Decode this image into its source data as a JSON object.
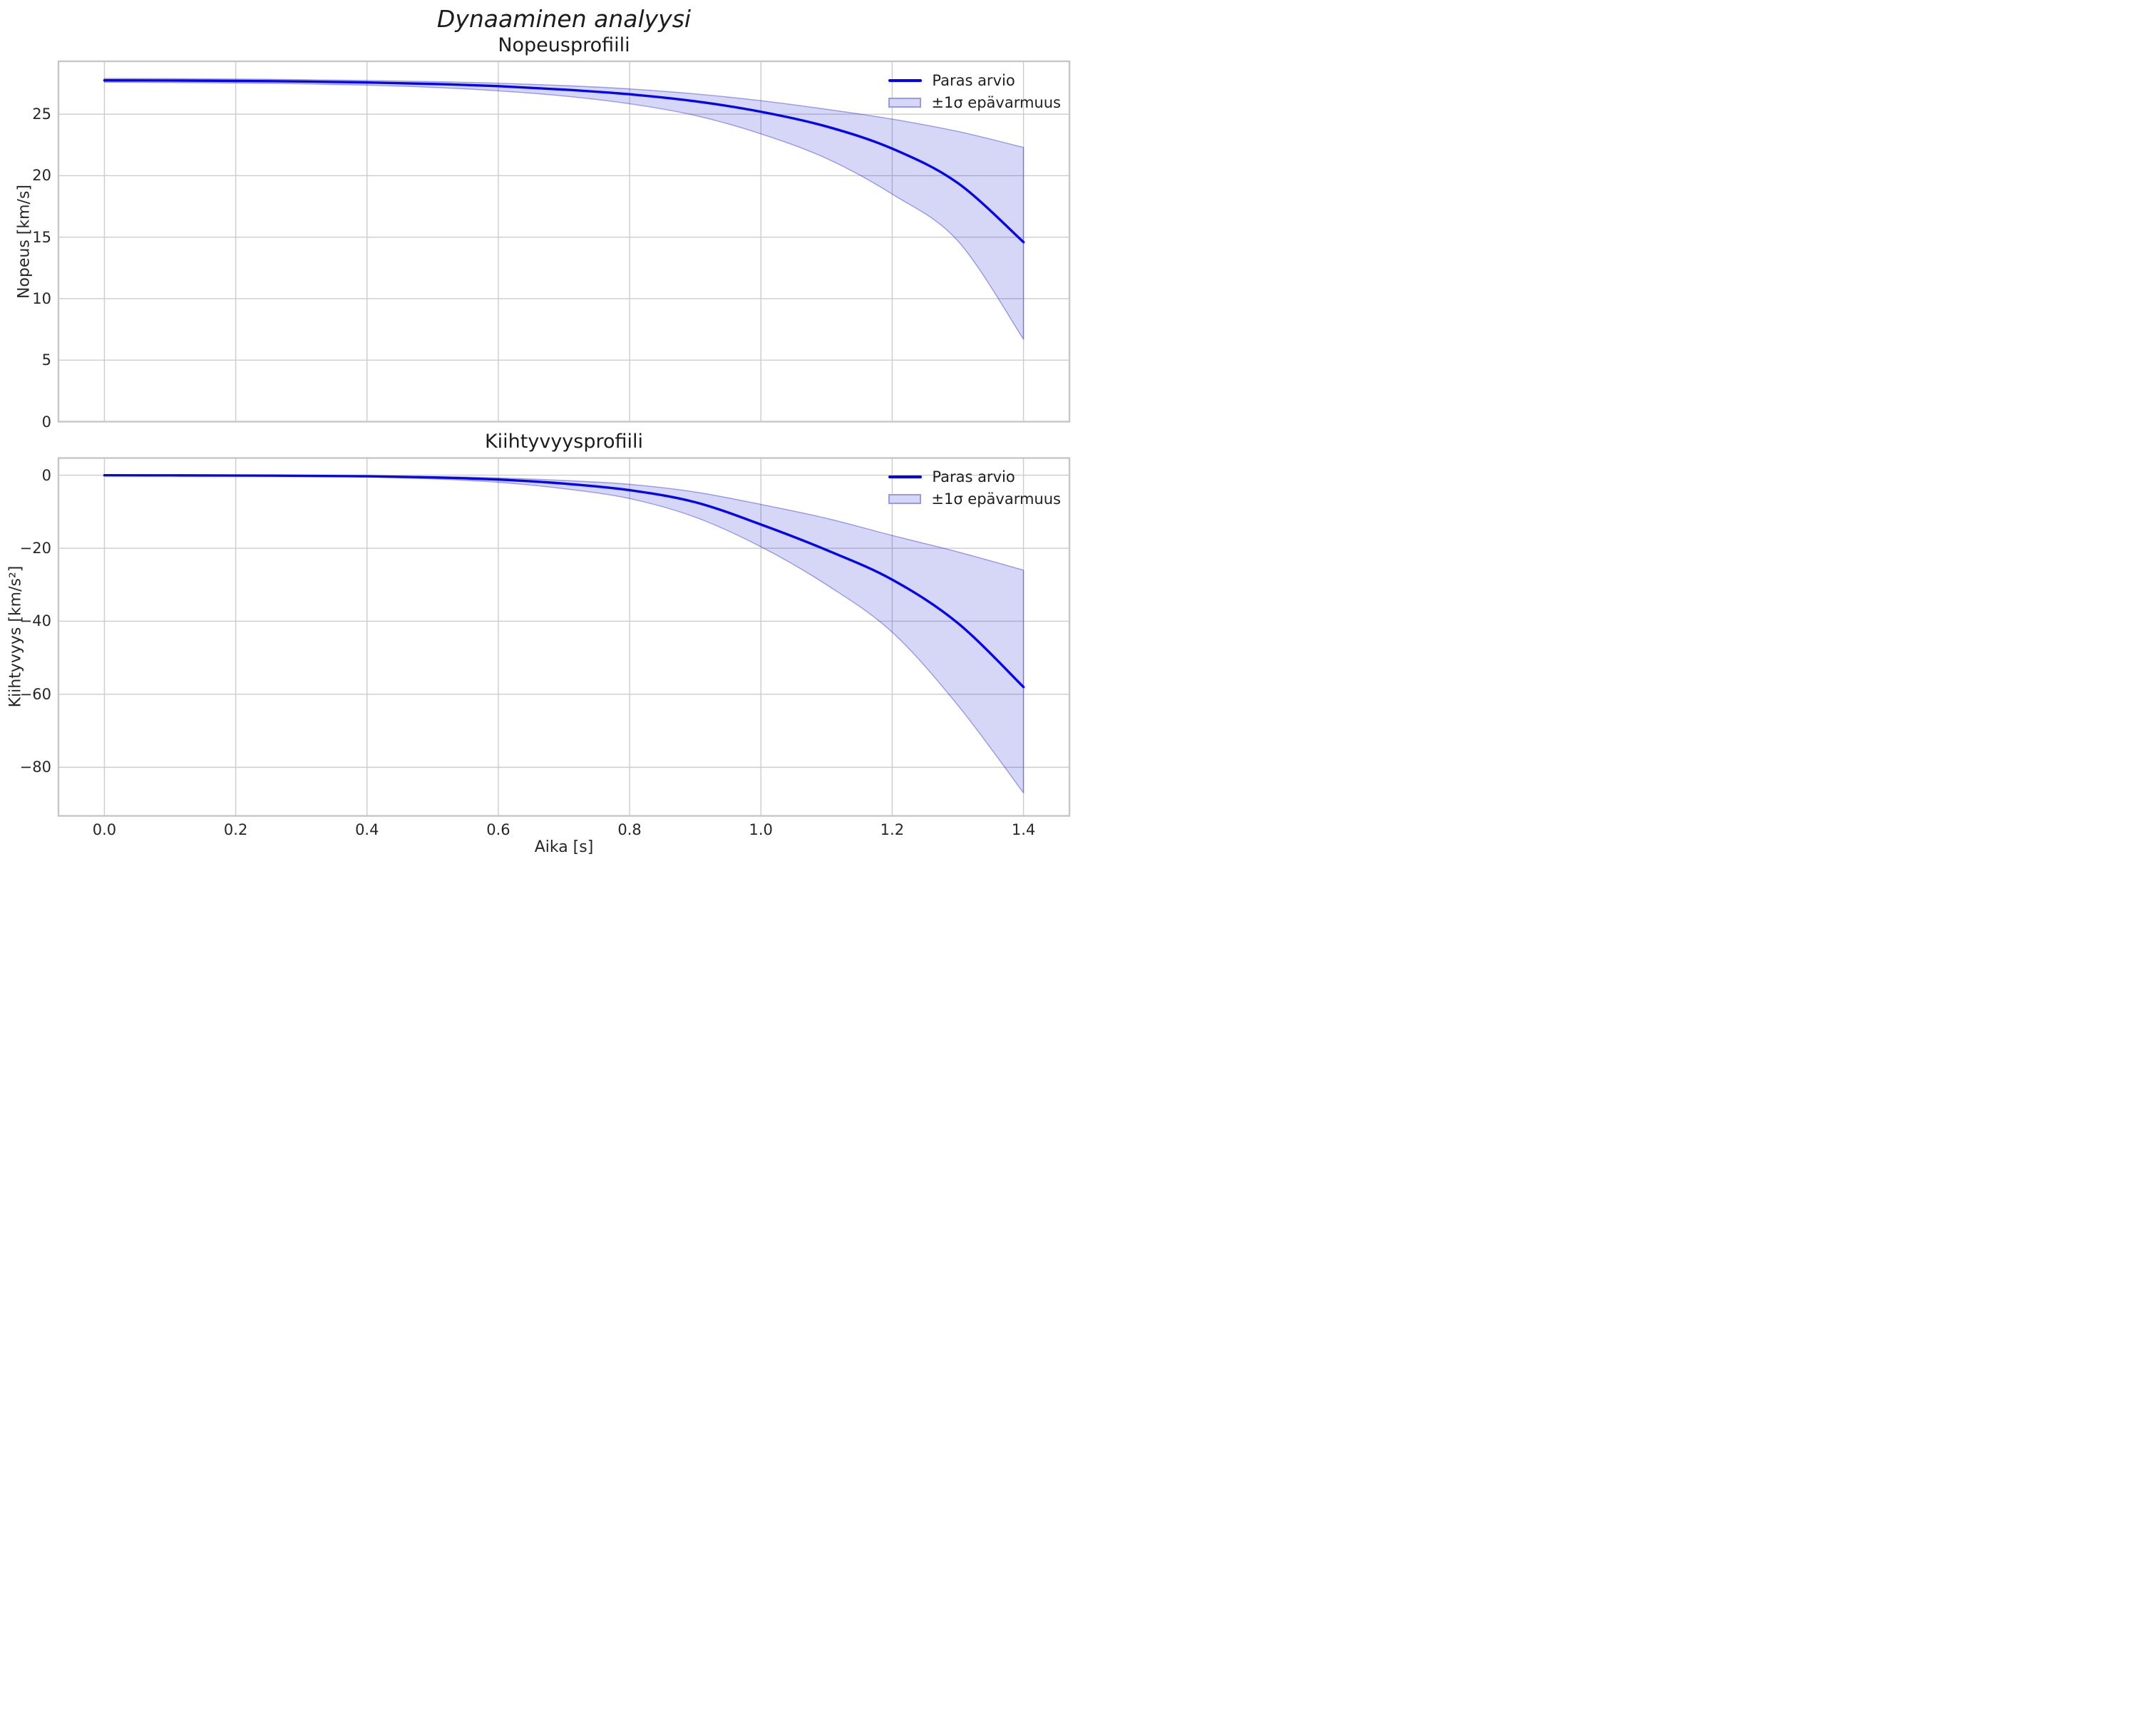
{
  "figure": {
    "title": "Dynaaminen analyysi",
    "background": "#ffffff"
  },
  "palette": {
    "line": "#0505eb",
    "band_fill": "rgba(0,0,200,0.16)",
    "band_edge": "rgba(0,0,200,0.35)",
    "grid": "#cccccc",
    "spine": "#c6c6c6",
    "text": "#1c1c1c",
    "tick_text": "#262626"
  },
  "legend": {
    "line_label": "Paras arvio",
    "band_label": "±1σ epävarmuus",
    "position": "upper right",
    "frame": false
  },
  "xaxis": {
    "label": "Aika [s]",
    "lim": [
      -0.07,
      1.47
    ],
    "ticks": [
      0.0,
      0.2,
      0.4,
      0.6,
      0.8,
      1.0,
      1.2,
      1.4
    ],
    "tick_labels": [
      "0.0",
      "0.2",
      "0.4",
      "0.6",
      "0.8",
      "1.0",
      "1.2",
      "1.4"
    ]
  },
  "chart_data": [
    {
      "type": "line",
      "title": "Nopeusprofiili",
      "ylabel": "Nopeus [km/s]",
      "ylim": [
        0,
        29.3
      ],
      "yticks": [
        0,
        5,
        10,
        15,
        20,
        25
      ],
      "ytick_labels": [
        "0",
        "5",
        "10",
        "15",
        "20",
        "25"
      ],
      "grid": true,
      "legend_position": "upper right",
      "x": [
        0.0,
        0.1,
        0.2,
        0.3,
        0.4,
        0.5,
        0.6,
        0.7,
        0.8,
        0.9,
        1.0,
        1.1,
        1.2,
        1.3,
        1.4
      ],
      "series": [
        {
          "name": "Paras arvio",
          "role": "mid",
          "values": [
            27.75,
            27.74,
            27.71,
            27.66,
            27.58,
            27.46,
            27.28,
            27.0,
            26.62,
            26.05,
            25.2,
            24.0,
            22.2,
            19.4,
            14.6
          ]
        },
        {
          "name": "+1σ",
          "role": "upper",
          "values": [
            27.9,
            27.89,
            27.86,
            27.81,
            27.74,
            27.65,
            27.52,
            27.33,
            27.06,
            26.65,
            26.1,
            25.4,
            24.6,
            23.6,
            22.3
          ]
        },
        {
          "name": "−1σ",
          "role": "lower",
          "values": [
            27.6,
            27.58,
            27.54,
            27.47,
            27.36,
            27.18,
            26.9,
            26.48,
            25.85,
            24.9,
            23.4,
            21.4,
            18.5,
            14.7,
            6.7
          ]
        }
      ]
    },
    {
      "type": "line",
      "title": "Kiihtyvyysprofiili",
      "ylabel": "Kiihtyvyys [km/s²]",
      "ylim": [
        -93.3,
        4.7
      ],
      "yticks": [
        0,
        -20,
        -40,
        -60,
        -80
      ],
      "ytick_labels": [
        "0",
        "−20",
        "−40",
        "−60",
        "−80"
      ],
      "grid": true,
      "legend_position": "upper right",
      "x": [
        0.0,
        0.1,
        0.2,
        0.3,
        0.4,
        0.5,
        0.6,
        0.7,
        0.8,
        0.9,
        1.0,
        1.1,
        1.2,
        1.3,
        1.4
      ],
      "series": [
        {
          "name": "Paras arvio",
          "role": "mid",
          "values": [
            -0.03,
            -0.05,
            -0.09,
            -0.16,
            -0.3,
            -0.6,
            -1.2,
            -2.3,
            -4.1,
            -7.4,
            -13.5,
            -20.5,
            -28.6,
            -40.5,
            -58.0
          ]
        },
        {
          "name": "+1σ",
          "role": "upper",
          "values": [
            -0.02,
            -0.03,
            -0.06,
            -0.1,
            -0.19,
            -0.38,
            -0.75,
            -1.45,
            -2.5,
            -4.6,
            -8.0,
            -11.8,
            -16.5,
            -21.0,
            -26.0
          ]
        },
        {
          "name": "−1σ",
          "role": "lower",
          "values": [
            -0.05,
            -0.08,
            -0.14,
            -0.26,
            -0.5,
            -1.0,
            -1.95,
            -3.7,
            -6.4,
            -11.5,
            -19.6,
            -30.0,
            -43.0,
            -63.0,
            -87.0
          ]
        }
      ]
    }
  ]
}
